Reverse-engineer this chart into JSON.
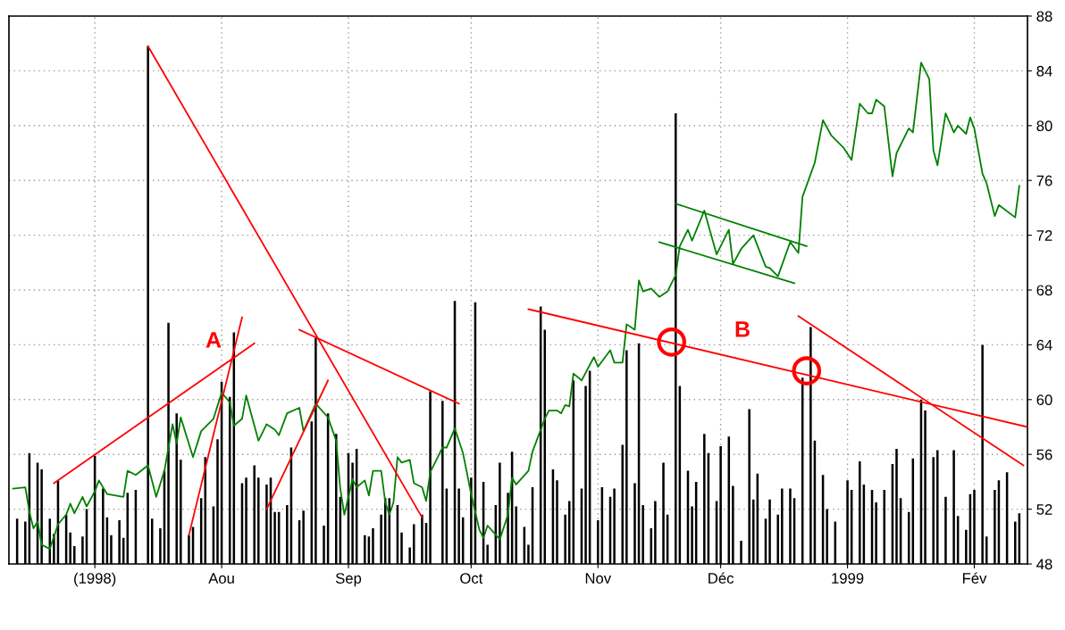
{
  "chart_data": {
    "type": "line",
    "xlim": [
      "1998-06-10",
      "1999-02-14"
    ],
    "xticks": [
      {
        "value": "1998-07-01",
        "label": "(1998)"
      },
      {
        "value": "1998-08-01",
        "label": "Aou"
      },
      {
        "value": "1998-09-01",
        "label": "Sep"
      },
      {
        "value": "1998-10-01",
        "label": "Oct"
      },
      {
        "value": "1998-11-01",
        "label": "Nov"
      },
      {
        "value": "1998-12-01",
        "label": "Déc"
      },
      {
        "value": "1999-01-01",
        "label": "1999"
      },
      {
        "value": "1999-02-01",
        "label": "Fév"
      }
    ],
    "ylim": [
      48,
      88
    ],
    "yticks": [
      48,
      52,
      56,
      60,
      64,
      68,
      72,
      76,
      80,
      84,
      88
    ],
    "grid": true,
    "annotations": [
      "A",
      "B"
    ],
    "series": [
      {
        "type": "bar",
        "color": "#000000",
        "x": [
          "1998-06-12",
          "1998-06-14",
          "1998-06-15",
          "1998-06-17",
          "1998-06-18",
          "1998-06-20",
          "1998-06-21",
          "1998-06-22",
          "1998-06-24",
          "1998-06-25",
          "1998-06-26",
          "1998-06-28",
          "1998-06-29",
          "1998-07-01",
          "1998-07-03",
          "1998-07-04",
          "1998-07-05",
          "1998-07-07",
          "1998-07-08",
          "1998-07-09",
          "1998-07-11",
          "1998-07-14",
          "1998-07-15",
          "1998-07-17",
          "1998-07-18",
          "1998-07-19",
          "1998-07-21",
          "1998-07-22",
          "1998-07-24",
          "1998-07-25",
          "1998-07-27",
          "1998-07-28",
          "1998-07-30",
          "1998-07-31",
          "1998-08-01",
          "1998-08-03",
          "1998-08-04",
          "1998-08-06",
          "1998-08-07",
          "1998-08-09",
          "1998-08-10",
          "1998-08-12",
          "1998-08-13",
          "1998-08-14",
          "1998-08-15",
          "1998-08-17",
          "1998-08-18",
          "1998-08-20",
          "1998-08-21",
          "1998-08-23",
          "1998-08-24",
          "1998-08-26",
          "1998-08-27",
          "1998-08-29",
          "1998-08-30",
          "1998-09-01",
          "1998-09-02",
          "1998-09-03",
          "1998-09-05",
          "1998-09-06",
          "1998-09-07",
          "1998-09-09",
          "1998-09-10",
          "1998-09-11",
          "1998-09-13",
          "1998-09-14",
          "1998-09-16",
          "1998-09-17",
          "1998-09-19",
          "1998-09-20",
          "1998-09-21",
          "1998-09-24",
          "1998-09-25",
          "1998-09-27",
          "1998-09-28",
          "1998-09-29",
          "1998-10-01",
          "1998-10-02",
          "1998-10-04",
          "1998-10-05",
          "1998-10-07",
          "1998-10-08",
          "1998-10-10",
          "1998-10-11",
          "1998-10-12",
          "1998-10-14",
          "1998-10-15",
          "1998-10-16",
          "1998-10-18",
          "1998-10-19",
          "1998-10-21",
          "1998-10-22",
          "1998-10-24",
          "1998-10-25",
          "1998-10-26",
          "1998-10-28",
          "1998-10-29",
          "1998-10-30",
          "1998-11-01",
          "1998-11-02",
          "1998-11-04",
          "1998-11-05",
          "1998-11-07",
          "1998-11-08",
          "1998-11-10",
          "1998-11-11",
          "1998-11-12",
          "1998-11-14",
          "1998-11-15",
          "1998-11-17",
          "1998-11-18",
          "1998-11-20",
          "1998-11-21",
          "1998-11-23",
          "1998-11-24",
          "1998-11-25",
          "1998-11-27",
          "1998-11-28",
          "1998-11-30",
          "1998-12-01",
          "1998-12-03",
          "1998-12-04",
          "1998-12-06",
          "1998-12-08",
          "1998-12-09",
          "1998-12-10",
          "1998-12-12",
          "1998-12-13",
          "1998-12-15",
          "1998-12-16",
          "1998-12-18",
          "1998-12-19",
          "1998-12-21",
          "1998-12-23",
          "1998-12-24",
          "1998-12-26",
          "1998-12-27",
          "1998-12-29",
          "1999-01-01",
          "1999-01-02",
          "1999-01-04",
          "1999-01-05",
          "1999-01-07",
          "1999-01-08",
          "1999-01-10",
          "1999-01-12",
          "1999-01-13",
          "1999-01-14",
          "1999-01-16",
          "1999-01-17",
          "1999-01-19",
          "1999-01-20",
          "1999-01-22",
          "1999-01-23",
          "1999-01-25",
          "1999-01-27",
          "1999-01-28",
          "1999-01-30",
          "1999-01-31",
          "1999-02-01",
          "1999-02-03",
          "1999-02-04",
          "1999-02-06",
          "1999-02-07",
          "1999-02-09",
          "1999-02-11",
          "1999-02-12"
        ],
        "values": [
          51.3,
          51.1,
          56.1,
          55.4,
          54.9,
          51.3,
          50.2,
          54.1,
          51.6,
          50.3,
          49.3,
          50.0,
          52.0,
          55.9,
          53.5,
          51.4,
          50.1,
          51.2,
          49.9,
          53.2,
          53.4,
          85.8,
          51.3,
          50.6,
          54.8,
          65.6,
          59.0,
          55.6,
          50.1,
          50.7,
          52.8,
          55.8,
          52.2,
          57.1,
          61.3,
          60.2,
          64.9,
          53.9,
          54.3,
          55.2,
          54.3,
          53.8,
          54.3,
          51.8,
          51.8,
          52.3,
          56.5,
          51.2,
          51.9,
          58.4,
          64.5,
          50.8,
          59.0,
          57.5,
          52.9,
          56.1,
          55.4,
          56.4,
          50.1,
          50.0,
          50.6,
          51.6,
          52.8,
          52.8,
          52.3,
          50.3,
          49.2,
          50.9,
          51.6,
          51.0,
          60.6,
          59.9,
          53.5,
          67.2,
          53.5,
          51.4,
          54.3,
          67.1,
          54.0,
          49.4,
          52.3,
          55.4,
          53.2,
          56.2,
          52.2,
          50.7,
          49.4,
          53.6,
          66.8,
          65.1,
          54.9,
          54.1,
          51.6,
          52.6,
          61.4,
          53.5,
          61.0,
          62.1,
          51.2,
          53.6,
          52.9,
          53.5,
          56.7,
          63.6,
          53.9,
          64.1,
          52.3,
          50.6,
          52.6,
          55.4,
          51.6,
          80.9,
          61.0,
          54.8,
          52.2,
          54.0,
          57.5,
          56.1,
          52.6,
          56.6,
          57.3,
          53.7,
          49.7,
          59.3,
          52.7,
          54.6,
          51.3,
          52.7,
          51.6,
          53.5,
          53.5,
          52.8,
          61.6,
          65.3,
          57.0,
          54.5,
          52.0,
          51.1,
          54.1,
          53.4,
          55.5,
          53.8,
          53.4,
          52.5,
          53.4,
          55.3,
          56.4,
          52.8,
          51.8,
          55.7,
          60.0,
          59.2,
          55.8,
          56.3,
          52.9,
          56.3,
          51.5,
          50.5,
          53.1,
          53.4,
          64.0,
          50.0,
          53.4,
          54.1,
          54.7,
          51.1,
          51.7
        ]
      },
      {
        "color": "#008000",
        "x": [
          "1998-06-11",
          "1998-06-14",
          "1998-06-15",
          "1998-06-16",
          "1998-06-17",
          "1998-06-18",
          "1998-06-20",
          "1998-06-22",
          "1998-06-24",
          "1998-06-25",
          "1998-06-26",
          "1998-06-28",
          "1998-06-29",
          "1998-07-01",
          "1998-07-02",
          "1998-07-04",
          "1998-07-08",
          "1998-07-09",
          "1998-07-11",
          "1998-07-14",
          "1998-07-16",
          "1998-07-18",
          "1998-07-20",
          "1998-07-21",
          "1998-07-22",
          "1998-07-25",
          "1998-07-27",
          "1998-07-30",
          "1998-08-01",
          "1998-08-03",
          "1998-08-04",
          "1998-08-06",
          "1998-08-07",
          "1998-08-10",
          "1998-08-12",
          "1998-08-14",
          "1998-08-15",
          "1998-08-17",
          "1998-08-20",
          "1998-08-21",
          "1998-08-24",
          "1998-08-27",
          "1998-08-29",
          "1998-08-30",
          "1998-08-31",
          "1998-09-02",
          "1998-09-03",
          "1998-09-05",
          "1998-09-06",
          "1998-09-07",
          "1998-09-09",
          "1998-09-10",
          "1998-09-11",
          "1998-09-12",
          "1998-09-13",
          "1998-09-14",
          "1998-09-16",
          "1998-09-17",
          "1998-09-19",
          "1998-09-20",
          "1998-09-21",
          "1998-09-24",
          "1998-09-25",
          "1998-09-27",
          "1998-09-29",
          "1998-10-01",
          "1998-10-03",
          "1998-10-04",
          "1998-10-05",
          "1998-10-08",
          "1998-10-10",
          "1998-10-11",
          "1998-10-12",
          "1998-10-15",
          "1998-10-16",
          "1998-10-19",
          "1998-10-20",
          "1998-10-22",
          "1998-10-23",
          "1998-10-24",
          "1998-10-25",
          "1998-10-26",
          "1998-10-28",
          "1998-10-31",
          "1998-11-01",
          "1998-11-04",
          "1998-11-05",
          "1998-11-07",
          "1998-11-08",
          "1998-11-10",
          "1998-11-11",
          "1998-11-12",
          "1998-11-14",
          "1998-11-16",
          "1998-11-18",
          "1998-11-20",
          "1998-11-21",
          "1998-11-23",
          "1998-11-24",
          "1998-11-27",
          "1998-11-30",
          "1998-12-03",
          "1998-12-04",
          "1998-12-06",
          "1998-12-09",
          "1998-12-12",
          "1998-12-13",
          "1998-12-15",
          "1998-12-18",
          "1998-12-20",
          "1998-12-21",
          "1998-12-24",
          "1998-12-26",
          "1998-12-28",
          "1998-12-31",
          "1999-01-02",
          "1999-01-04",
          "1999-01-06",
          "1999-01-07",
          "1999-01-08",
          "1999-01-10",
          "1999-01-12",
          "1999-01-13",
          "1999-01-16",
          "1999-01-17",
          "1999-01-19",
          "1999-01-21",
          "1999-01-22",
          "1999-01-23",
          "1999-01-25",
          "1999-01-27",
          "1999-01-28",
          "1999-01-30",
          "1999-01-31",
          "1999-02-01",
          "1999-02-03",
          "1999-02-04",
          "1999-02-06",
          "1999-02-07",
          "1999-02-11",
          "1999-02-12"
        ],
        "values": [
          53.5,
          53.6,
          51.8,
          50.6,
          51.1,
          49.4,
          49.1,
          50.9,
          51.6,
          52.4,
          51.7,
          52.9,
          52.2,
          53.3,
          54.1,
          53.1,
          52.9,
          54.8,
          54.5,
          55.2,
          52.9,
          54.8,
          58.2,
          56.8,
          58.7,
          55.8,
          57.7,
          58.6,
          60.5,
          59.8,
          58.1,
          58.6,
          60.3,
          57.0,
          58.2,
          57.8,
          57.4,
          59.0,
          59.4,
          57.7,
          59.7,
          58.7,
          57.0,
          53.5,
          51.6,
          54.2,
          53.6,
          54.1,
          53.0,
          54.8,
          54.8,
          52.5,
          51.6,
          52.5,
          55.8,
          55.4,
          55.6,
          53.9,
          53.6,
          52.6,
          54.7,
          56.5,
          56.5,
          57.9,
          56.1,
          53.1,
          50.5,
          49.9,
          50.8,
          49.8,
          51.6,
          54.3,
          53.8,
          54.8,
          56.2,
          58.6,
          59.2,
          59.2,
          59.0,
          59.6,
          59.5,
          61.9,
          61.4,
          63.1,
          62.4,
          63.6,
          62.7,
          62.7,
          65.5,
          65.1,
          68.7,
          67.9,
          68.1,
          67.5,
          67.9,
          69.1,
          71.2,
          72.4,
          71.6,
          73.8,
          70.6,
          72.4,
          69.9,
          71.0,
          72.0,
          69.7,
          69.6,
          69.0,
          71.5,
          70.7,
          74.8,
          77.3,
          80.4,
          79.3,
          78.4,
          77.5,
          81.6,
          80.9,
          80.9,
          81.9,
          81.4,
          76.3,
          78.0,
          79.8,
          79.5,
          84.6,
          83.4,
          78.2,
          77.1,
          80.9,
          79.5,
          80.0,
          79.4,
          80.6,
          79.8,
          76.5,
          75.8,
          73.4,
          74.2,
          73.3,
          75.6
        ]
      },
      {
        "type": "line",
        "color": "#ff0000",
        "x": [
          "1998-06-21",
          "1998-08-09"
        ],
        "values": [
          53.9,
          64.1
        ]
      },
      {
        "type": "line",
        "color": "#ff0000",
        "x": [
          "1998-07-14",
          "1998-09-19"
        ],
        "values": [
          85.8,
          51.4
        ]
      },
      {
        "type": "line",
        "color": "#ff0000",
        "x": [
          "1998-07-24",
          "1998-08-06"
        ],
        "values": [
          50.1,
          66.0
        ]
      },
      {
        "type": "line",
        "color": "#ff0000",
        "x": [
          "1998-08-12",
          "1998-08-27"
        ],
        "values": [
          52.0,
          61.4
        ]
      },
      {
        "type": "line",
        "color": "#ff0000",
        "x": [
          "1998-08-20",
          "1998-09-28"
        ],
        "values": [
          65.1,
          59.7
        ]
      },
      {
        "type": "line",
        "color": "#ff0000",
        "x": [
          "1998-10-15",
          "1999-02-14"
        ],
        "values": [
          66.6,
          58.0
        ]
      },
      {
        "type": "line",
        "color": "#ff0000",
        "x": [
          "1998-12-20",
          "1999-02-13"
        ],
        "values": [
          66.1,
          55.2
        ]
      },
      {
        "type": "line",
        "color": "#008000",
        "x": [
          "1998-11-20",
          "1998-12-22"
        ],
        "values": [
          74.3,
          71.2
        ]
      },
      {
        "type": "line",
        "color": "#008000",
        "x": [
          "1998-11-16",
          "1998-12-19"
        ],
        "values": [
          71.5,
          68.5
        ]
      },
      {
        "type": "scatter",
        "color": "#ff0000",
        "marker": "circle",
        "x": [
          "1998-11-19",
          "1998-12-22"
        ],
        "values": [
          64.2,
          62.1
        ]
      }
    ]
  }
}
